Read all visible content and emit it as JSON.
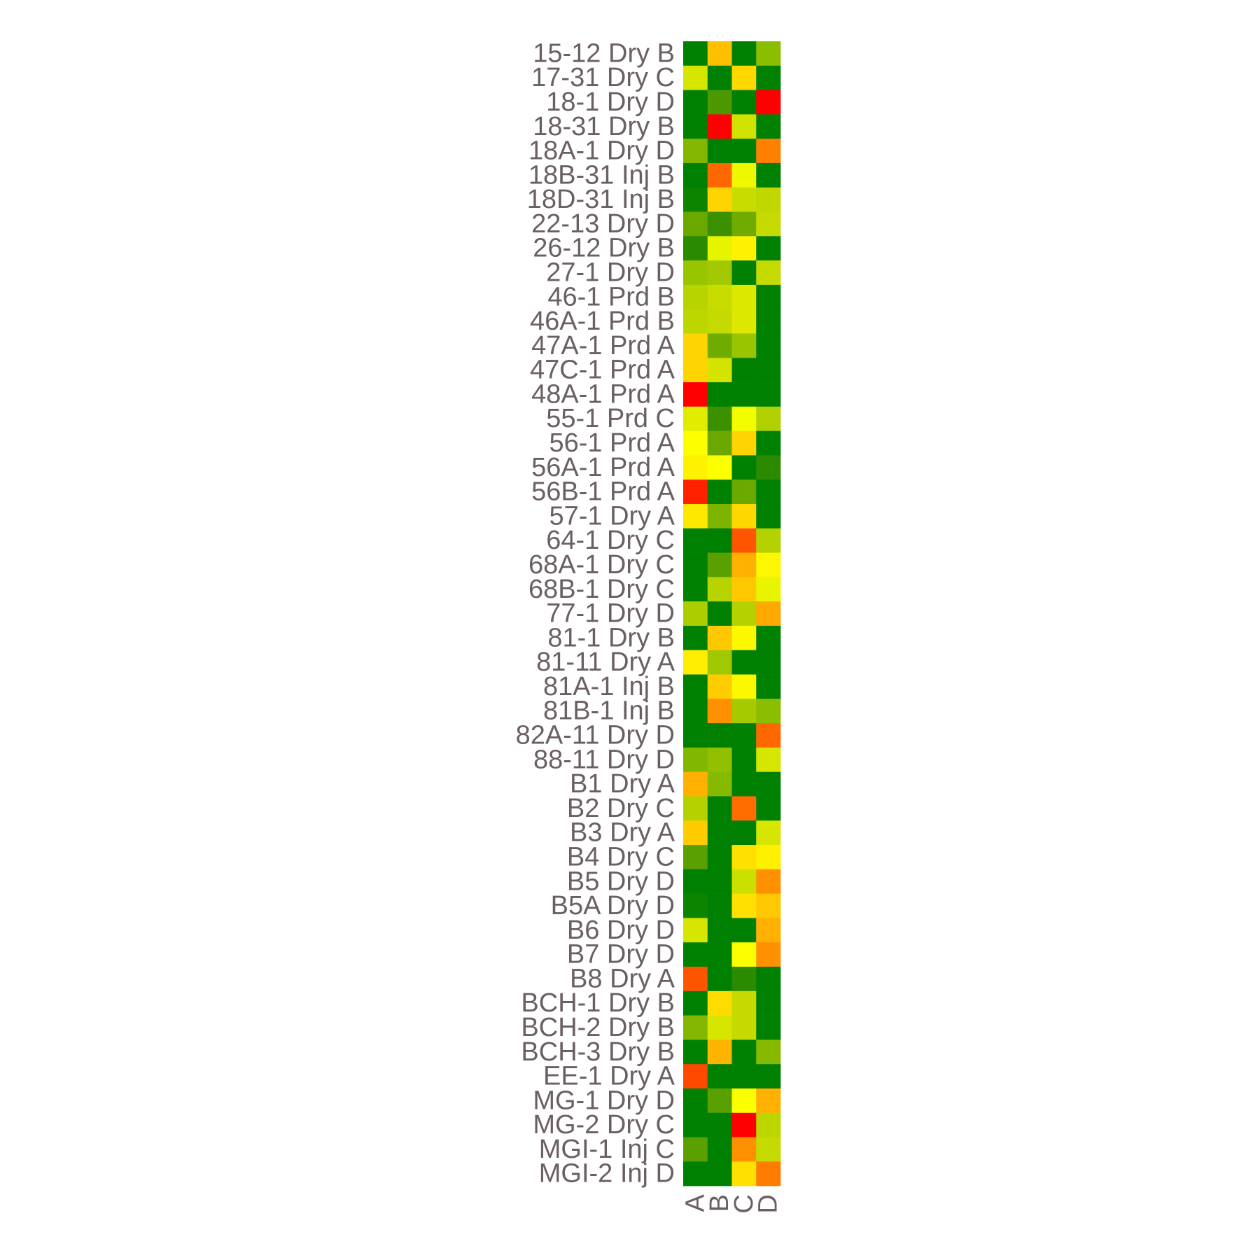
{
  "chart_data": {
    "type": "heatmap",
    "title": "",
    "xlabel": "",
    "ylabel": "",
    "columns": [
      "A",
      "B",
      "C",
      "D"
    ],
    "rows": [
      "15-12 Dry B",
      "17-31 Dry C",
      "18-1 Dry D",
      "18-31 Dry B",
      "18A-1 Dry D",
      "18B-31 Inj B",
      "18D-31 Inj B",
      "22-13 Dry D",
      "26-12 Dry B",
      "27-1 Dry D",
      "46-1 Prd B",
      "46A-1 Prd B",
      "47A-1 Prd A",
      "47C-1 Prd A",
      "48A-1 Prd A",
      "55-1 Prd C",
      "56-1 Prd A",
      "56A-1 Prd A",
      "56B-1 Prd A",
      "57-1 Dry A",
      "64-1 Dry C",
      "68A-1 Dry C",
      "68B-1 Dry C",
      "77-1 Dry D",
      "81-1 Dry B",
      "81-11 Dry A",
      "81A-1 Inj B",
      "81B-1 Inj B",
      "82A-11 Dry D",
      "88-11 Dry D",
      "B1 Dry A",
      "B2 Dry C",
      "B3 Dry A",
      "B4 Dry C",
      "B5 Dry D",
      "B5A Dry D",
      "B6 Dry D",
      "B7 Dry D",
      "B8 Dry A",
      "BCH-1 Dry B",
      "BCH-2 Dry B",
      "BCH-3 Dry B",
      "EE-1 Dry A",
      "MG-1 Dry D",
      "MG-2 Dry C",
      "MGI-1 Inj C",
      "MGI-2 Inj D"
    ],
    "cell_colors": [
      [
        "#008000",
        "#ffc000",
        "#008000",
        "#8cbe00"
      ],
      [
        "#d6e600",
        "#008000",
        "#ffd800",
        "#008000"
      ],
      [
        "#008000",
        "#4c9800",
        "#008000",
        "#ff0000"
      ],
      [
        "#008000",
        "#ff0000",
        "#d0e200",
        "#008000"
      ],
      [
        "#84b800",
        "#008000",
        "#008000",
        "#ff8000"
      ],
      [
        "#008000",
        "#ff6800",
        "#eef800",
        "#008000"
      ],
      [
        "#0c8400",
        "#ffd400",
        "#c8dc00",
        "#c0d800"
      ],
      [
        "#6aa800",
        "#3c9000",
        "#70ac00",
        "#c4da00"
      ],
      [
        "#2a8a00",
        "#e6f400",
        "#fff200",
        "#008000"
      ],
      [
        "#98c400",
        "#a2c800",
        "#008000",
        "#c4da00"
      ],
      [
        "#b8d400",
        "#c8dc00",
        "#dce800",
        "#008000"
      ],
      [
        "#bcd600",
        "#c4da00",
        "#dce800",
        "#008000"
      ],
      [
        "#ffd400",
        "#70ac00",
        "#98c400",
        "#008000"
      ],
      [
        "#ffd400",
        "#d4e400",
        "#008000",
        "#008000"
      ],
      [
        "#ff0000",
        "#008000",
        "#008000",
        "#008000"
      ],
      [
        "#e0ec00",
        "#3c9000",
        "#f4fc00",
        "#b0d000"
      ],
      [
        "#fcff00",
        "#6aa800",
        "#ffd400",
        "#008000"
      ],
      [
        "#fff200",
        "#fcff00",
        "#008000",
        "#2c8a00"
      ],
      [
        "#ff2000",
        "#008000",
        "#6aa800",
        "#008000"
      ],
      [
        "#ffe800",
        "#7cb400",
        "#ffd800",
        "#008000"
      ],
      [
        "#008000",
        "#008000",
        "#ff5400",
        "#b4d200"
      ],
      [
        "#008000",
        "#5aa000",
        "#ffb000",
        "#fcf600"
      ],
      [
        "#008000",
        "#b8d400",
        "#ffc800",
        "#e8f400"
      ],
      [
        "#acce00",
        "#008000",
        "#b4d200",
        "#ffa800"
      ],
      [
        "#008000",
        "#ffc800",
        "#fcf800",
        "#008000"
      ],
      [
        "#ffec00",
        "#a0c800",
        "#008000",
        "#008000"
      ],
      [
        "#008000",
        "#ffcc00",
        "#fcf800",
        "#008000"
      ],
      [
        "#008000",
        "#ff9000",
        "#a6ca00",
        "#8cbe00"
      ],
      [
        "#008000",
        "#008000",
        "#008000",
        "#ff6800"
      ],
      [
        "#80b800",
        "#90c000",
        "#008000",
        "#d6e600"
      ],
      [
        "#ffb000",
        "#86ba00",
        "#008000",
        "#008000"
      ],
      [
        "#b4d200",
        "#008000",
        "#ff6c00",
        "#008000"
      ],
      [
        "#ffcc00",
        "#008000",
        "#008000",
        "#d6e600"
      ],
      [
        "#5aa000",
        "#008000",
        "#ffe000",
        "#fff000"
      ],
      [
        "#008000",
        "#008000",
        "#cce000",
        "#ff9000"
      ],
      [
        "#0c8400",
        "#008000",
        "#ffe000",
        "#ffc800"
      ],
      [
        "#d6e600",
        "#008000",
        "#008000",
        "#ffb000"
      ],
      [
        "#008000",
        "#008000",
        "#fcff00",
        "#ff9000"
      ],
      [
        "#ff5400",
        "#008000",
        "#2a8a00",
        "#008000"
      ],
      [
        "#008000",
        "#ffdc00",
        "#c4da00",
        "#008000"
      ],
      [
        "#84b800",
        "#d6e600",
        "#c4da00",
        "#008000"
      ],
      [
        "#008000",
        "#ffb400",
        "#008000",
        "#86ba00"
      ],
      [
        "#ff4800",
        "#008000",
        "#008000",
        "#008000"
      ],
      [
        "#008000",
        "#5aa000",
        "#fcff00",
        "#ffb000"
      ],
      [
        "#008000",
        "#008000",
        "#ff0000",
        "#bcd600"
      ],
      [
        "#5aa000",
        "#008000",
        "#ff9000",
        "#c4da00"
      ],
      [
        "#008000",
        "#008000",
        "#ffe000",
        "#ff7c00"
      ]
    ],
    "legend": "none",
    "grid": false
  }
}
